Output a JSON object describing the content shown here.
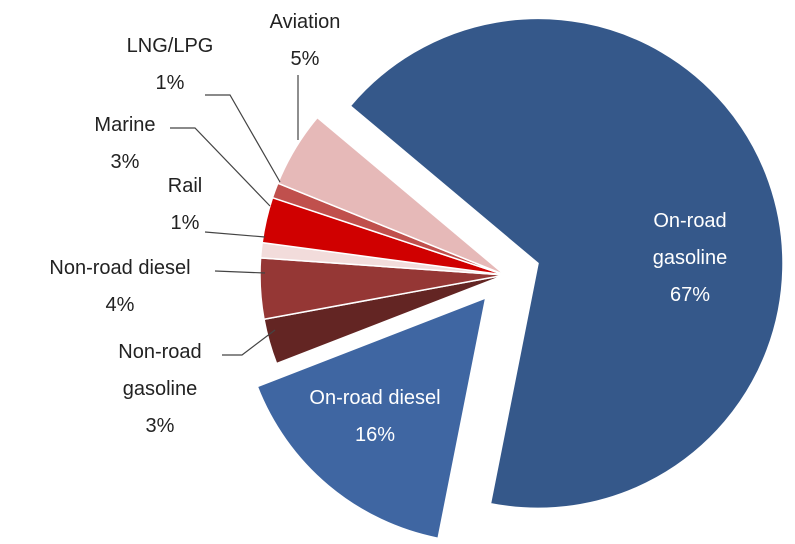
{
  "chart_data": {
    "type": "pie",
    "categories": [
      "On-road gasoline",
      "On-road diesel",
      "Non-road gasoline",
      "Non-road diesel",
      "Rail",
      "Marine",
      "LNG/LPG",
      "Aviation"
    ],
    "values": [
      67,
      16,
      3,
      4,
      1,
      3,
      1,
      5
    ],
    "value_labels": [
      "67%",
      "16%",
      "3%",
      "4%",
      "1%",
      "3%",
      "1%",
      "5%"
    ],
    "colors": [
      "#35588a",
      "#3f66a2",
      "#632523",
      "#953735",
      "#f2dcdb",
      "#d00000",
      "#c0504d",
      "#e6b9b8"
    ]
  }
}
